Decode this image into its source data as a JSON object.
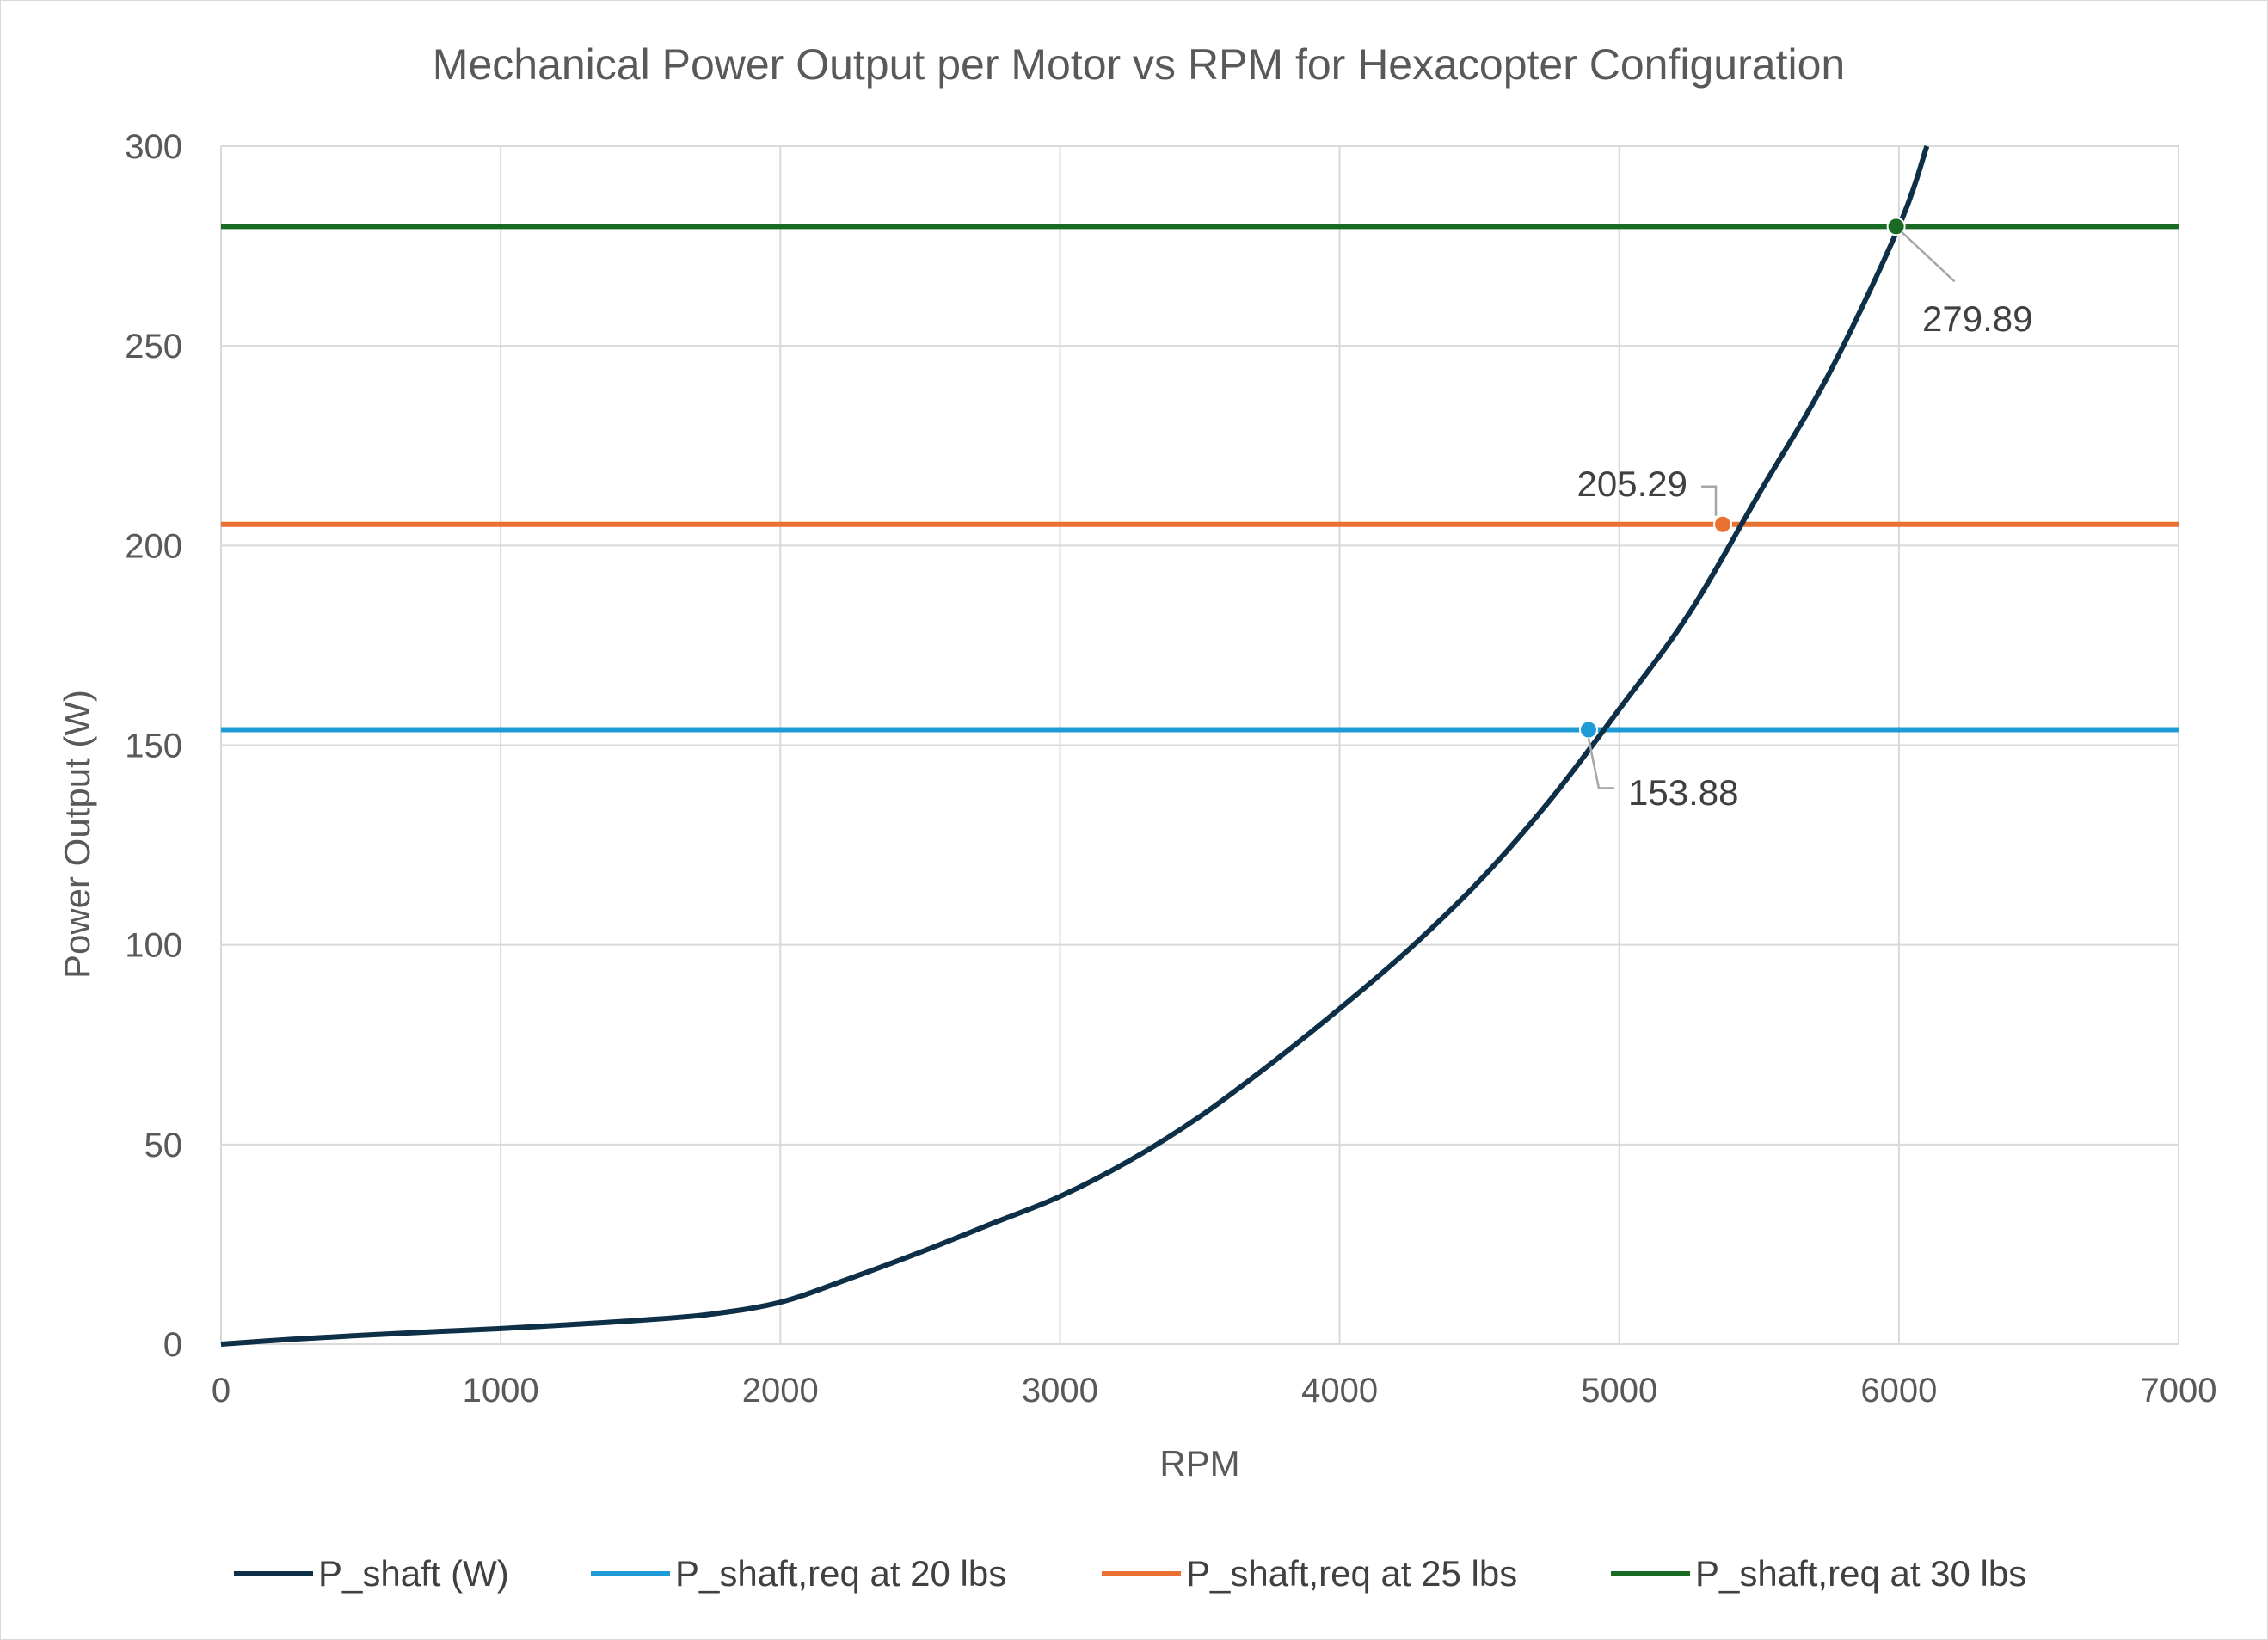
{
  "chart_data": {
    "type": "line",
    "title": "Mechanical Power Output per Motor vs RPM for Hexacopter Configuration",
    "xlabel": "RPM",
    "ylabel": "Power Output (W)",
    "xlim": [
      0,
      7000
    ],
    "ylim": [
      0,
      300
    ],
    "xticks": [
      0,
      1000,
      2000,
      3000,
      4000,
      5000,
      6000,
      7000
    ],
    "yticks": [
      0,
      50,
      100,
      150,
      200,
      250,
      300
    ],
    "grid": true,
    "legend_position": "bottom",
    "series": [
      {
        "name": "P_shaft (W)",
        "color": "#0d3048",
        "x": [
          0,
          250,
          500,
          750,
          1000,
          1250,
          1500,
          1750,
          2000,
          2250,
          2500,
          2750,
          3000,
          3250,
          3500,
          3750,
          4000,
          4250,
          4500,
          4750,
          5000,
          5250,
          5500,
          5750,
          6000,
          6100
        ],
        "y": [
          0,
          1.2,
          2.2,
          3.1,
          3.9,
          4.9,
          6.0,
          7.5,
          10.5,
          16.5,
          23.0,
          30.0,
          37.0,
          46.0,
          57.0,
          70.0,
          84.0,
          99.0,
          116.0,
          136.0,
          159.0,
          183.0,
          213.0,
          243.0,
          279.89,
          300.0
        ]
      },
      {
        "name": "P_shaft,req at 20 lbs",
        "color": "#1e9bd7",
        "y_constant": 153.88,
        "intersect_x": 4890,
        "label": "153.88"
      },
      {
        "name": "P_shaft,req at 25 lbs",
        "color": "#e97132",
        "y_constant": 205.29,
        "intersect_x": 5370,
        "label": "205.29"
      },
      {
        "name": "P_shaft,req at 30 lbs",
        "color": "#196b24",
        "y_constant": 279.89,
        "intersect_x": 5990,
        "label": "279.89"
      }
    ]
  }
}
